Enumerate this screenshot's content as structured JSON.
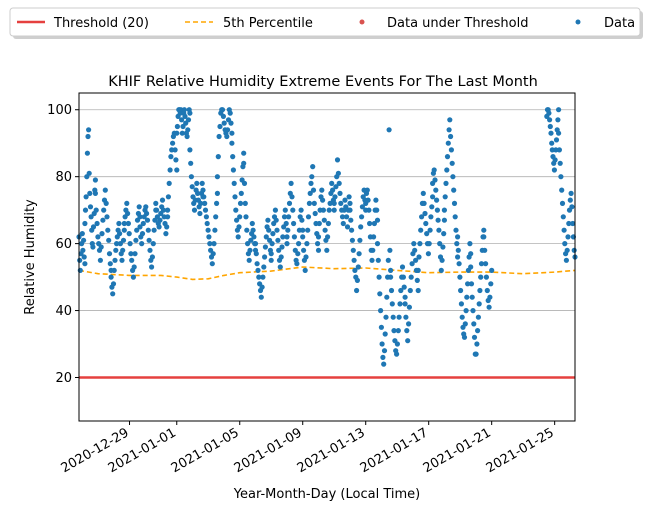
{
  "chart_data": {
    "type": "scatter",
    "title": "KHIF Relative Humidity Extreme Events For The Last Month",
    "xlabel": "Year-Month-Day (Local Time)",
    "ylabel": "Relative Humidity",
    "xlim": [
      "2020-12-25T19:00",
      "2021-01-26T07:00"
    ],
    "ylim": [
      7,
      105
    ],
    "yticks": [
      20,
      40,
      60,
      80,
      100
    ],
    "xticks": [
      "2020-12-29",
      "2021-01-01",
      "2021-01-05",
      "2021-01-09",
      "2021-01-13",
      "2021-01-17",
      "2021-01-21",
      "2021-01-25"
    ],
    "grid": "horizontal",
    "legend": {
      "position": "top",
      "entries": [
        {
          "label": "Threshold (20)",
          "style": "line",
          "color": "#e5403f"
        },
        {
          "label": "5th Percentile",
          "style": "dashed",
          "color": "#ffa500"
        },
        {
          "label": "Data under Threshold",
          "style": "dot",
          "color": "#d9534f"
        },
        {
          "label": "Data",
          "style": "dot",
          "color": "#1f77b4"
        }
      ]
    },
    "threshold": {
      "value": 20,
      "color": "#e5403f"
    },
    "percentile_5th": {
      "color": "#ffa500",
      "points": [
        [
          "2020-12-25T19:00",
          52
        ],
        [
          "2020-12-27T00:00",
          51
        ],
        [
          "2020-12-29T00:00",
          50.5
        ],
        [
          "2020-12-31T00:00",
          50.5
        ],
        [
          "2021-01-01T00:00",
          50
        ],
        [
          "2021-01-02T00:00",
          49.3
        ],
        [
          "2021-01-03T00:00",
          49.5
        ],
        [
          "2021-01-04T00:00",
          50.5
        ],
        [
          "2021-01-05T00:00",
          51.3
        ],
        [
          "2021-01-07T00:00",
          51.8
        ],
        [
          "2021-01-09T00:00",
          53
        ],
        [
          "2021-01-11T00:00",
          52.5
        ],
        [
          "2021-01-13T00:00",
          52.7
        ],
        [
          "2021-01-15T00:00",
          52
        ],
        [
          "2021-01-17T00:00",
          51.3
        ],
        [
          "2021-01-19T00:00",
          51.5
        ],
        [
          "2021-01-21T00:00",
          51.5
        ],
        [
          "2021-01-23T00:00",
          51
        ],
        [
          "2021-01-25T00:00",
          51.5
        ],
        [
          "2021-01-26T07:00",
          52
        ]
      ]
    },
    "data_color": "#1f77b4",
    "data_under_threshold": [],
    "data": [
      {
        "start": "2020-12-25T19:00",
        "end": "2020-12-26T04:00",
        "vals": [
          62,
          55,
          52,
          57,
          60,
          63,
          58,
          61,
          56,
          54
        ]
      },
      {
        "start": "2020-12-26T04:00",
        "end": "2020-12-26T20:00",
        "vals": [
          66,
          70,
          74,
          80,
          87,
          92,
          94,
          81,
          75,
          71,
          68,
          64,
          60,
          59,
          65,
          69,
          76,
          79
        ]
      },
      {
        "start": "2020-12-26T20:00",
        "end": "2020-12-27T20:00",
        "vals": [
          75,
          70,
          66,
          62,
          60,
          58,
          55,
          59,
          63,
          67,
          70,
          73,
          76,
          72,
          68,
          64,
          61,
          57,
          54,
          52
        ]
      },
      {
        "start": "2020-12-27T20:00",
        "end": "2020-12-28T16:00",
        "vals": [
          50,
          47,
          45,
          48,
          52,
          55,
          58,
          60,
          62,
          64,
          66,
          63,
          60,
          57,
          55,
          58,
          61,
          64
        ]
      },
      {
        "start": "2020-12-28T16:00",
        "end": "2020-12-29T16:00",
        "vals": [
          66,
          68,
          70,
          72,
          69,
          66,
          63,
          60,
          57,
          55,
          52,
          50,
          53,
          57,
          61,
          64,
          67,
          69,
          71,
          68
        ]
      },
      {
        "start": "2020-12-29T16:00",
        "end": "2020-12-30T16:00",
        "vals": [
          65,
          62,
          60,
          63,
          66,
          68,
          70,
          71,
          69,
          67,
          64,
          61,
          58,
          55,
          53,
          56,
          60,
          64,
          67,
          70
        ]
      },
      {
        "start": "2020-12-30T16:00",
        "end": "2020-12-31T10:00",
        "vals": [
          72,
          70,
          68,
          66,
          65,
          67,
          69,
          71,
          73,
          70,
          68,
          66,
          63,
          65,
          68
        ]
      },
      {
        "start": "2020-12-31T10:00",
        "end": "2021-01-01T00:00",
        "vals": [
          70,
          74,
          78,
          82,
          86,
          88,
          90,
          92,
          93,
          88,
          85,
          82
        ]
      },
      {
        "start": "2021-01-01T00:00",
        "end": "2021-01-01T20:00",
        "vals": [
          93,
          95,
          98,
          100,
          100,
          99,
          100,
          97,
          93,
          95,
          99,
          100,
          98,
          96,
          93,
          92,
          94,
          97,
          100,
          99
        ]
      },
      {
        "start": "2021-01-01T20:00",
        "end": "2021-01-02T16:00",
        "vals": [
          88,
          84,
          80,
          77,
          74,
          72,
          70,
          73,
          76,
          78,
          75,
          73,
          71,
          69,
          72,
          75,
          78,
          74
        ]
      },
      {
        "start": "2021-01-02T16:00",
        "end": "2021-01-03T14:00",
        "vals": [
          76,
          74,
          72,
          70,
          68,
          66,
          64,
          62,
          60,
          58,
          56,
          54,
          57,
          60,
          64,
          68,
          72,
          75
        ]
      },
      {
        "start": "2021-01-03T14:00",
        "end": "2021-01-04T12:00",
        "vals": [
          80,
          86,
          92,
          95,
          99,
          100,
          100,
          98,
          96,
          94,
          93,
          92,
          94,
          97,
          100,
          99,
          96,
          93
        ]
      },
      {
        "start": "2021-01-04T12:00",
        "end": "2021-01-05T06:00",
        "vals": [
          90,
          86,
          82,
          78,
          74,
          70,
          67,
          64,
          62,
          65,
          68,
          72,
          75,
          79,
          83,
          87
        ]
      },
      {
        "start": "2021-01-05T06:00",
        "end": "2021-01-06T00:00",
        "vals": [
          84,
          78,
          72,
          68,
          64,
          60,
          57,
          55,
          58,
          61,
          63,
          66,
          64,
          62,
          60,
          58
        ]
      },
      {
        "start": "2021-01-06T00:00",
        "end": "2021-01-07T00:00",
        "vals": [
          60,
          57,
          54,
          52,
          50,
          48,
          46,
          44,
          47,
          50,
          53,
          56,
          59,
          62,
          65,
          67,
          64,
          61,
          58,
          55
        ]
      },
      {
        "start": "2021-01-07T00:00",
        "end": "2021-01-08T00:00",
        "vals": [
          57,
          60,
          63,
          66,
          68,
          70,
          67,
          64,
          61,
          58,
          55,
          53,
          56,
          59,
          62,
          65,
          68,
          70,
          66,
          62
        ]
      },
      {
        "start": "2021-01-08T00:00",
        "end": "2021-01-09T00:00",
        "vals": [
          60,
          64,
          68,
          72,
          75,
          78,
          74,
          70,
          66,
          62,
          58,
          55,
          54,
          57,
          60,
          64,
          68,
          70,
          67,
          64
        ]
      },
      {
        "start": "2021-01-09T00:00",
        "end": "2021-01-10T00:00",
        "vals": [
          62,
          58,
          55,
          52,
          56,
          60,
          64,
          68,
          72,
          75,
          78,
          80,
          83,
          76,
          72,
          69,
          66,
          63,
          60,
          58
        ]
      },
      {
        "start": "2021-01-10T00:00",
        "end": "2021-01-11T00:00",
        "vals": [
          62,
          66,
          70,
          74,
          76,
          73,
          70,
          67,
          64,
          61,
          58,
          62,
          66,
          70,
          72,
          75,
          78,
          76,
          73,
          70
        ]
      },
      {
        "start": "2021-01-11T00:00",
        "end": "2021-01-12T00:00",
        "vals": [
          72,
          74,
          77,
          80,
          85,
          81,
          78,
          75,
          72,
          70,
          68,
          66,
          70,
          73,
          71,
          68,
          65,
          70,
          74,
          72
        ]
      },
      {
        "start": "2021-01-12T00:00",
        "end": "2021-01-13T00:00",
        "vals": [
          70,
          67,
          64,
          61,
          58,
          55,
          52,
          50,
          46,
          49,
          53,
          57,
          61,
          65,
          68,
          71,
          74,
          76,
          73,
          70
        ]
      },
      {
        "start": "2021-01-13T00:00",
        "end": "2021-01-13T18:00",
        "vals": [
          72,
          75,
          76,
          73,
          70,
          66,
          62,
          58,
          55,
          58,
          62,
          66,
          70,
          73,
          70,
          67
        ]
      },
      {
        "start": "2021-01-13T18:00",
        "end": "2021-01-14T14:00",
        "vals": [
          60,
          55,
          50,
          45,
          40,
          35,
          30,
          26,
          24,
          28,
          33,
          38,
          44,
          50,
          55,
          94,
          58,
          52
        ]
      },
      {
        "start": "2021-01-14T14:00",
        "end": "2021-01-15T12:00",
        "vals": [
          50,
          46,
          42,
          38,
          34,
          31,
          28,
          27,
          30,
          34,
          38,
          42,
          46,
          50,
          53,
          50,
          47,
          44
        ]
      },
      {
        "start": "2021-01-15T12:00",
        "end": "2021-01-16T08:00",
        "vals": [
          42,
          38,
          34,
          31,
          36,
          41,
          46,
          50,
          54,
          57,
          60,
          58,
          55,
          52,
          49,
          46
        ]
      },
      {
        "start": "2021-01-16T08:00",
        "end": "2021-01-17T06:00",
        "vals": [
          52,
          56,
          60,
          64,
          68,
          72,
          75,
          72,
          69,
          66,
          63,
          60,
          57,
          60,
          64,
          68,
          71,
          74
        ]
      },
      {
        "start": "2021-01-17T06:00",
        "end": "2021-01-18T00:00",
        "vals": [
          78,
          81,
          82,
          79,
          76,
          73,
          70,
          67,
          64,
          60,
          56,
          52,
          55,
          59,
          63,
          67
        ]
      },
      {
        "start": "2021-01-18T00:00",
        "end": "2021-01-18T20:00",
        "vals": [
          70,
          74,
          78,
          82,
          86,
          90,
          94,
          97,
          92,
          88,
          84,
          80,
          76,
          72,
          68,
          64,
          60,
          56
        ]
      },
      {
        "start": "2021-01-18T20:00",
        "end": "2021-01-19T16:00",
        "vals": [
          62,
          58,
          54,
          50,
          46,
          42,
          38,
          35,
          33,
          32,
          36,
          40,
          44,
          48,
          52,
          56,
          60,
          57
        ]
      },
      {
        "start": "2021-01-19T16:00",
        "end": "2021-01-20T12:00",
        "vals": [
          53,
          48,
          44,
          40,
          36,
          32,
          27,
          27,
          30,
          34,
          38,
          42,
          46,
          50,
          54,
          58,
          62,
          64
        ]
      },
      {
        "start": "2021-01-20T12:00",
        "end": "2021-01-21T00:00",
        "vals": [
          62,
          58,
          54,
          50,
          46,
          43,
          41,
          44,
          48,
          52
        ]
      },
      {
        "start": "2021-01-24T12:00",
        "end": "2021-01-25T06:00",
        "vals": [
          98,
          100,
          100,
          99,
          97,
          95,
          93,
          90,
          88,
          86,
          84,
          82,
          85,
          88,
          91,
          94,
          97,
          100
        ]
      },
      {
        "start": "2021-01-25T06:00",
        "end": "2021-01-26T07:00",
        "vals": [
          93,
          88,
          84,
          80,
          76,
          72,
          68,
          64,
          60,
          57,
          55,
          58,
          62,
          66,
          70,
          73,
          75,
          71,
          66,
          62,
          58,
          56
        ]
      }
    ]
  }
}
